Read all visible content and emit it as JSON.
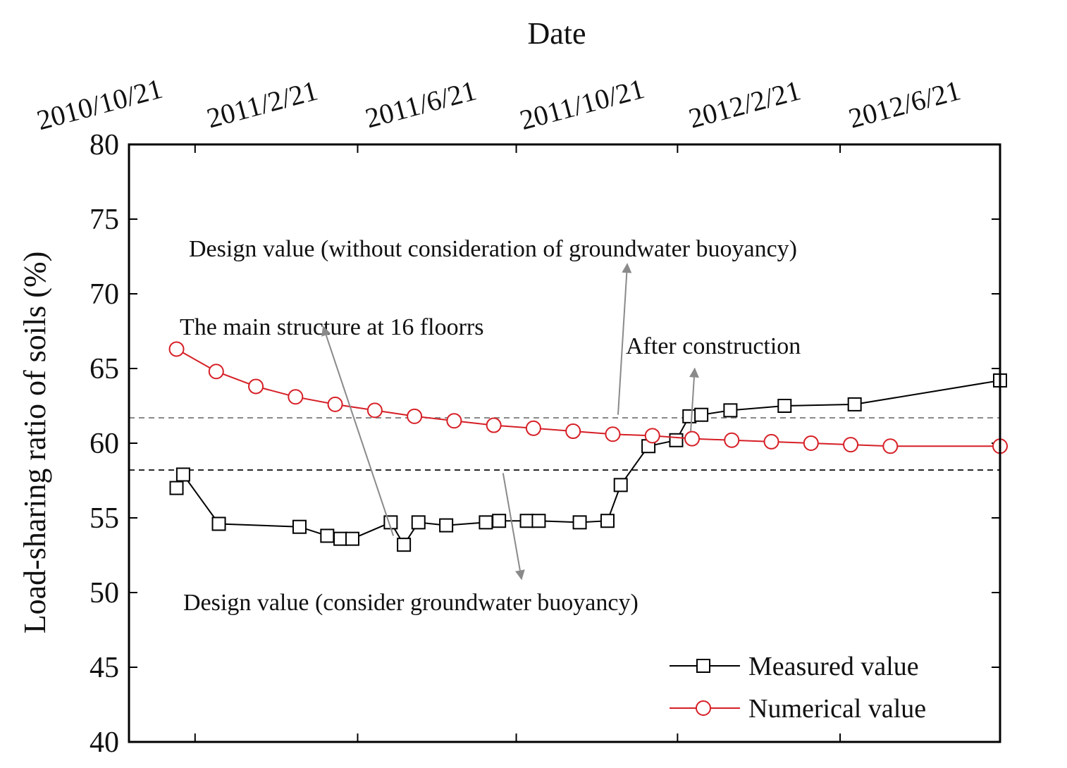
{
  "chart_data": {
    "type": "line",
    "xlabel": "Date",
    "ylabel": "Load-sharing ratio of soils (%)",
    "ylim": [
      40,
      80
    ],
    "yticks": [
      "80",
      "75",
      "70",
      "65",
      "60",
      "55",
      "50",
      "45",
      "40"
    ],
    "xlim": [
      "2010-09-01",
      "2012-06-21"
    ],
    "xticks": [
      "2010/10/21",
      "2011/2/21",
      "2011/6/21",
      "2011/10/21",
      "2012/2/21",
      "2012/6/21"
    ],
    "grid": false,
    "legend_position": "bottom-right",
    "series": [
      {
        "name": "Measured value",
        "color": "#000000",
        "marker": "square",
        "x": [
          "2010-10-07",
          "2010-10-12",
          "2010-11-08",
          "2011-01-08",
          "2011-01-29",
          "2011-02-08",
          "2011-02-17",
          "2011-03-18",
          "2011-03-28",
          "2011-04-08",
          "2011-04-29",
          "2011-05-29",
          "2011-06-08",
          "2011-06-29",
          "2011-07-08",
          "2011-08-08",
          "2011-08-29",
          "2011-09-08",
          "2011-09-29",
          "2011-10-20",
          "2011-10-30",
          "2011-11-08",
          "2011-11-30",
          "2012-01-10",
          "2012-03-03",
          "2012-06-21"
        ],
        "values": [
          57.0,
          57.9,
          54.6,
          54.4,
          53.8,
          53.6,
          53.6,
          54.7,
          53.2,
          54.7,
          54.5,
          54.7,
          54.8,
          54.8,
          54.8,
          54.7,
          54.8,
          57.2,
          59.8,
          60.2,
          61.8,
          61.9,
          62.2,
          62.5,
          62.6,
          64.2
        ]
      },
      {
        "name": "Numerical value",
        "color": "#d61f26",
        "marker": "circle",
        "x": [
          "2010-10-07",
          "2010-11-06",
          "2010-12-06",
          "2011-01-05",
          "2011-02-04",
          "2011-03-06",
          "2011-04-05",
          "2011-05-05",
          "2011-06-04",
          "2011-07-04",
          "2011-08-03",
          "2011-09-02",
          "2011-10-02",
          "2011-11-01",
          "2011-12-01",
          "2011-12-31",
          "2012-01-30",
          "2012-02-29",
          "2012-03-30",
          "2012-06-21"
        ],
        "values": [
          66.3,
          64.8,
          63.8,
          63.1,
          62.6,
          62.2,
          61.8,
          61.5,
          61.2,
          61.0,
          60.8,
          60.6,
          60.5,
          60.3,
          60.2,
          60.1,
          60.0,
          59.9,
          59.8,
          59.8
        ]
      }
    ],
    "reference_lines": [
      {
        "value": 61.7,
        "color": "#8a8a8a",
        "style": "dashed"
      },
      {
        "value": 58.2,
        "color": "#222222",
        "style": "dashed"
      }
    ],
    "annotations": [
      {
        "text": "Design value (without consideration of groundwater buoyancy)",
        "arrow_from": [
          "2011-09-06",
          61.9
        ],
        "arrow_to": [
          "2011-09-13",
          72.0
        ]
      },
      {
        "text": "The main structure at 16 floorrs",
        "arrow_from": [
          "2011-03-20",
          53.8
        ],
        "arrow_to": [
          "2011-01-26",
          67.8
        ]
      },
      {
        "text": "After construction",
        "arrow_from": [
          "2011-10-31",
          60.8
        ],
        "arrow_to": [
          "2011-11-03",
          65.0
        ]
      },
      {
        "text": "Design value (consider groundwater buoyancy)",
        "arrow_from": [
          "2011-06-11",
          58.0
        ],
        "arrow_to": [
          "2011-06-25",
          50.9
        ]
      }
    ]
  }
}
